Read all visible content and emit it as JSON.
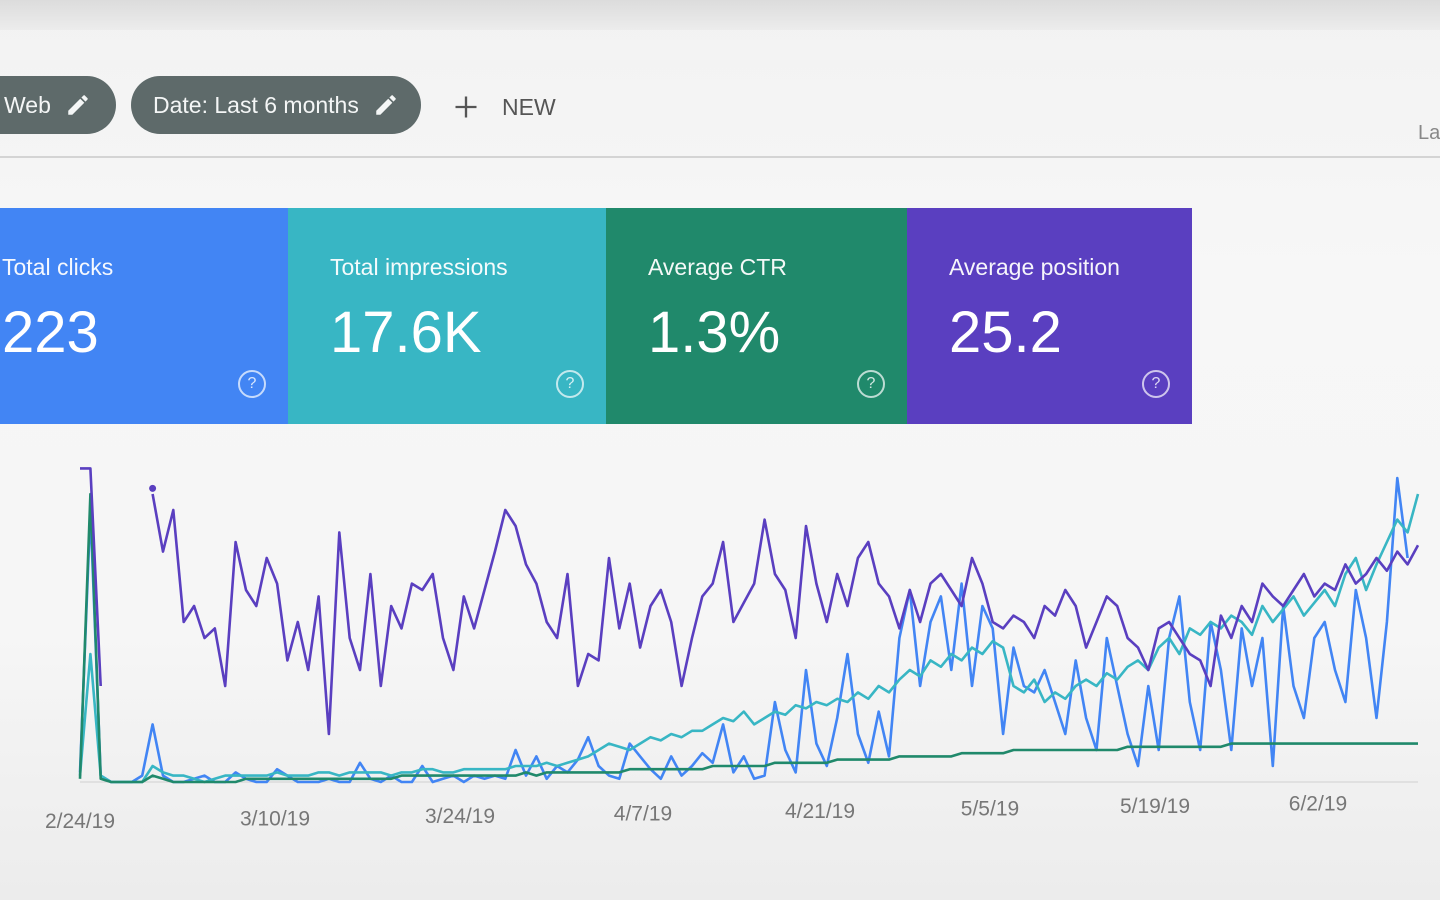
{
  "filters": {
    "web_chip": "Web",
    "date_chip": "Date: Last 6 months",
    "new_label": "NEW",
    "right_cut": "La"
  },
  "metrics": [
    {
      "label": "Total clicks",
      "value": "223",
      "color": "#4285f4"
    },
    {
      "label": "Total impressions",
      "value": "17.6K",
      "color": "#38b6c4"
    },
    {
      "label": "Average CTR",
      "value": "1.3%",
      "color": "#20896b"
    },
    {
      "label": "Average position",
      "value": "25.2",
      "color": "#5a3fc0"
    }
  ],
  "help_glyph": "?",
  "chart_data": {
    "type": "line",
    "x_ticks": [
      "2/24/19",
      "3/10/19",
      "3/24/19",
      "4/7/19",
      "4/21/19",
      "5/5/19",
      "5/19/19",
      "6/2/19"
    ],
    "grid": false,
    "series": [
      {
        "color": "#4285f4",
        "values": [
          0.03,
          0.85,
          0.02,
          0,
          0,
          0,
          0.02,
          0.18,
          0.02,
          0,
          0,
          0.01,
          0.02,
          0,
          0,
          0.03,
          0.01,
          0,
          0,
          0.04,
          0.02,
          0,
          0,
          0,
          0.01,
          0,
          0,
          0.06,
          0.01,
          0,
          0.02,
          0,
          0,
          0.05,
          0,
          0.01,
          0.02,
          0,
          0.02,
          0.01,
          0.02,
          0.01,
          0.1,
          0.02,
          0.08,
          0.01,
          0.05,
          0.03,
          0.07,
          0.14,
          0.05,
          0.02,
          0.01,
          0.12,
          0.08,
          0.04,
          0.01,
          0.08,
          0.02,
          0.05,
          0.09,
          0.06,
          0.18,
          0.03,
          0.08,
          0.01,
          0.02,
          0.25,
          0.1,
          0.03,
          0.35,
          0.12,
          0.05,
          0.2,
          0.4,
          0.15,
          0.06,
          0.22,
          0.08,
          0.45,
          0.6,
          0.3,
          0.5,
          0.58,
          0.35,
          0.62,
          0.3,
          0.55,
          0.48,
          0.15,
          0.42,
          0.3,
          0.28,
          0.35,
          0.25,
          0.15,
          0.38,
          0.2,
          0.1,
          0.45,
          0.3,
          0.15,
          0.05,
          0.3,
          0.1,
          0.45,
          0.58,
          0.25,
          0.1,
          0.5,
          0.35,
          0.1,
          0.48,
          0.3,
          0.45,
          0.05,
          0.55,
          0.3,
          0.2,
          0.45,
          0.5,
          0.35,
          0.25,
          0.6,
          0.45,
          0.2,
          0.5,
          0.95,
          0.7
        ]
      },
      {
        "color": "#38b6c4",
        "values": [
          0.02,
          0.4,
          0.02,
          0,
          0,
          0,
          0,
          0.05,
          0.03,
          0.02,
          0.02,
          0.01,
          0,
          0.01,
          0.02,
          0.02,
          0.02,
          0.02,
          0.02,
          0.03,
          0.02,
          0.02,
          0.02,
          0.03,
          0.03,
          0.02,
          0.03,
          0.03,
          0.03,
          0.03,
          0.02,
          0.03,
          0.03,
          0.04,
          0.04,
          0.03,
          0.03,
          0.04,
          0.04,
          0.04,
          0.04,
          0.04,
          0.05,
          0.05,
          0.05,
          0.06,
          0.05,
          0.06,
          0.07,
          0.08,
          0.1,
          0.12,
          0.11,
          0.1,
          0.12,
          0.14,
          0.13,
          0.15,
          0.14,
          0.16,
          0.16,
          0.18,
          0.2,
          0.19,
          0.22,
          0.18,
          0.2,
          0.22,
          0.21,
          0.24,
          0.23,
          0.25,
          0.24,
          0.26,
          0.25,
          0.28,
          0.26,
          0.3,
          0.28,
          0.32,
          0.35,
          0.33,
          0.38,
          0.36,
          0.4,
          0.38,
          0.42,
          0.4,
          0.44,
          0.42,
          0.3,
          0.28,
          0.32,
          0.25,
          0.28,
          0.26,
          0.3,
          0.32,
          0.3,
          0.34,
          0.32,
          0.36,
          0.38,
          0.35,
          0.42,
          0.45,
          0.4,
          0.48,
          0.46,
          0.5,
          0.48,
          0.52,
          0.5,
          0.46,
          0.55,
          0.5,
          0.54,
          0.58,
          0.52,
          0.56,
          0.6,
          0.55,
          0.65,
          0.7,
          0.6,
          0.68,
          0.75,
          0.82,
          0.78,
          0.9
        ]
      },
      {
        "color": "#20896b",
        "values": [
          0.01,
          0.9,
          0.01,
          0,
          0,
          0,
          0,
          0.02,
          0.01,
          0,
          0,
          0,
          0,
          0,
          0,
          0,
          0.01,
          0.01,
          0.01,
          0.01,
          0.01,
          0.01,
          0.01,
          0.01,
          0.01,
          0.01,
          0.01,
          0.01,
          0.01,
          0.01,
          0.01,
          0.02,
          0.02,
          0.02,
          0.02,
          0.02,
          0.02,
          0.02,
          0.02,
          0.02,
          0.02,
          0.02,
          0.02,
          0.03,
          0.02,
          0.03,
          0.03,
          0.03,
          0.03,
          0.03,
          0.03,
          0.03,
          0.03,
          0.04,
          0.04,
          0.04,
          0.04,
          0.04,
          0.04,
          0.04,
          0.04,
          0.05,
          0.05,
          0.05,
          0.05,
          0.05,
          0.05,
          0.06,
          0.06,
          0.06,
          0.06,
          0.06,
          0.06,
          0.07,
          0.07,
          0.07,
          0.07,
          0.07,
          0.07,
          0.08,
          0.08,
          0.08,
          0.08,
          0.08,
          0.08,
          0.09,
          0.09,
          0.09,
          0.09,
          0.09,
          0.1,
          0.1,
          0.1,
          0.1,
          0.1,
          0.1,
          0.1,
          0.1,
          0.1,
          0.1,
          0.1,
          0.11,
          0.11,
          0.11,
          0.11,
          0.11,
          0.11,
          0.11,
          0.11,
          0.11,
          0.11,
          0.12,
          0.12,
          0.12,
          0.12,
          0.12,
          0.12,
          0.12,
          0.12,
          0.12,
          0.12,
          0.12,
          0.12,
          0.12,
          0.12,
          0.12,
          0.12,
          0.12,
          0.12,
          0.12
        ]
      },
      {
        "color": "#5a3fc0",
        "values": [
          0.98,
          0.98,
          0.3,
          null,
          null,
          null,
          null,
          0.9,
          0.72,
          0.85,
          0.5,
          0.55,
          0.45,
          0.48,
          0.3,
          0.75,
          0.6,
          0.55,
          0.7,
          0.62,
          0.38,
          0.5,
          0.35,
          0.58,
          0.15,
          0.78,
          0.45,
          0.35,
          0.65,
          0.3,
          0.55,
          0.48,
          0.62,
          0.6,
          0.65,
          0.45,
          0.35,
          0.58,
          0.48,
          0.6,
          0.72,
          0.85,
          0.8,
          0.68,
          0.62,
          0.5,
          0.45,
          0.65,
          0.3,
          0.4,
          0.38,
          0.7,
          0.48,
          0.62,
          0.42,
          0.55,
          0.6,
          0.5,
          0.3,
          0.45,
          0.58,
          0.62,
          0.75,
          0.5,
          0.56,
          0.62,
          0.82,
          0.65,
          0.6,
          0.45,
          0.8,
          0.62,
          0.5,
          0.65,
          0.55,
          0.7,
          0.75,
          0.62,
          0.58,
          0.48,
          0.6,
          0.5,
          0.62,
          0.65,
          0.6,
          0.55,
          0.7,
          0.62,
          0.5,
          0.48,
          0.52,
          0.5,
          0.45,
          0.55,
          0.52,
          0.6,
          0.55,
          0.42,
          0.5,
          0.58,
          0.55,
          0.45,
          0.42,
          0.35,
          0.48,
          0.5,
          0.45,
          0.4,
          0.38,
          0.3,
          0.52,
          0.45,
          0.55,
          0.5,
          0.62,
          0.58,
          0.55,
          0.6,
          0.65,
          0.58,
          0.62,
          0.6,
          0.68,
          0.62,
          0.65,
          0.7,
          0.66,
          0.72,
          0.68,
          0.74
        ]
      }
    ],
    "stray_marker_series": [
      {
        "x_index": 7,
        "y": 0.98
      }
    ]
  }
}
